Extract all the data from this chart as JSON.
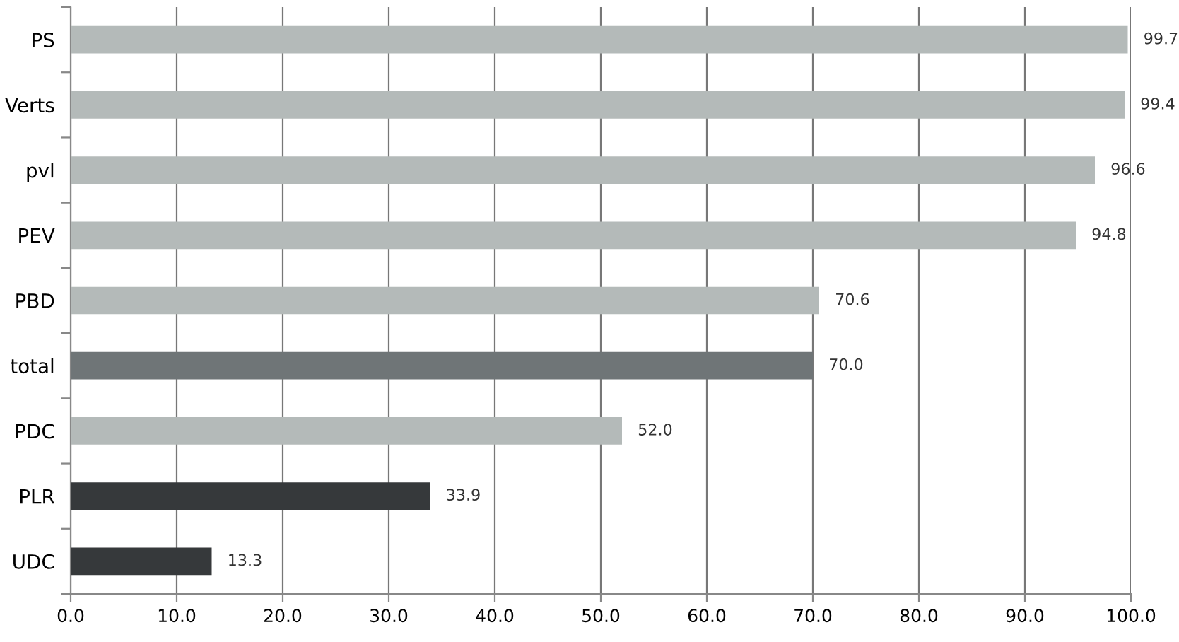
{
  "chart_data": {
    "type": "bar",
    "orientation": "horizontal",
    "categories": [
      "PS",
      "Verts",
      "pvl",
      "PEV",
      "PBD",
      "total",
      "PDC",
      "PLR",
      "UDC"
    ],
    "values": [
      99.7,
      99.4,
      96.6,
      94.8,
      70.6,
      70.0,
      52.0,
      33.9,
      13.3
    ],
    "colors": [
      "#b4bab9",
      "#b4bab9",
      "#b4bab9",
      "#b4bab9",
      "#b4bab9",
      "#6f7577",
      "#b4bab9",
      "#36393b",
      "#36393b"
    ],
    "value_labels": [
      "99.7",
      "99.4",
      "96.6",
      "94.8",
      "70.6",
      "70.0",
      "52.0",
      "33.9",
      "13.3"
    ],
    "xlim": [
      0,
      100
    ],
    "xticks": [
      {
        "value": 0,
        "label": "0.0"
      },
      {
        "value": 10,
        "label": "10.0"
      },
      {
        "value": 20,
        "label": "20.0"
      },
      {
        "value": 30,
        "label": "30.0"
      },
      {
        "value": 40,
        "label": "40.0"
      },
      {
        "value": 50,
        "label": "50.0"
      },
      {
        "value": 60,
        "label": "60.0"
      },
      {
        "value": 70,
        "label": "70.0"
      },
      {
        "value": 80,
        "label": "80.0"
      },
      {
        "value": 90,
        "label": "90.0"
      },
      {
        "value": 100,
        "label": "100.0"
      }
    ],
    "grid": "x",
    "legend": false
  }
}
